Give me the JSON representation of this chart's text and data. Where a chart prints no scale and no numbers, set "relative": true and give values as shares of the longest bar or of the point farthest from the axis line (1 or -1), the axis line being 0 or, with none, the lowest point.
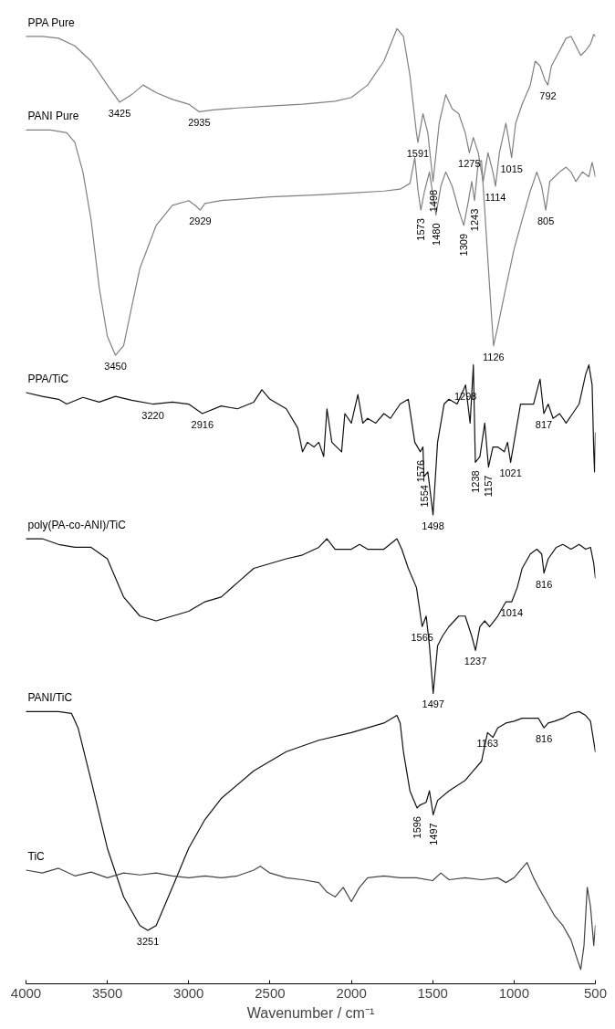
{
  "chart_data": {
    "type": "line",
    "relative": true,
    "xlabel": "Wavenumber / cm⁻¹",
    "xlim": [
      4000,
      500
    ],
    "xticks": [
      4000,
      3500,
      3000,
      2500,
      2000,
      1500,
      1000,
      500
    ],
    "grid": false,
    "legend": false,
    "marker": "none",
    "line_style": "solid",
    "series": [
      {
        "name": "PPA Pure",
        "color": "#808080",
        "x": [
          4000,
          3900,
          3800,
          3700,
          3600,
          3500,
          3425,
          3350,
          3280,
          3200,
          3100,
          3000,
          2935,
          2850,
          2700,
          2500,
          2300,
          2100,
          2000,
          1900,
          1800,
          1720,
          1680,
          1640,
          1600,
          1591,
          1560,
          1530,
          1498,
          1460,
          1420,
          1380,
          1340,
          1300,
          1275,
          1250,
          1220,
          1190,
          1160,
          1130,
          1114,
          1090,
          1050,
          1030,
          1015,
          990,
          950,
          900,
          870,
          840,
          810,
          792,
          770,
          720,
          680,
          650,
          620,
          590,
          560,
          530,
          510,
          500
        ],
        "values": [
          0.992,
          0.992,
          0.99,
          0.982,
          0.966,
          0.941,
          0.923,
          0.931,
          0.941,
          0.933,
          0.926,
          0.921,
          0.913,
          0.915,
          0.917,
          0.919,
          0.921,
          0.924,
          0.928,
          0.941,
          0.966,
          1.0,
          0.992,
          0.951,
          0.891,
          0.881,
          0.911,
          0.891,
          0.84,
          0.901,
          0.931,
          0.916,
          0.911,
          0.891,
          0.87,
          0.886,
          0.87,
          0.84,
          0.87,
          0.85,
          0.835,
          0.87,
          0.901,
          0.881,
          0.865,
          0.901,
          0.921,
          0.941,
          0.966,
          0.961,
          0.946,
          0.941,
          0.961,
          0.977,
          0.99,
          0.992,
          0.982,
          0.972,
          0.977,
          0.984,
          0.994,
          0.992
        ]
      },
      {
        "name": "PANI Pure",
        "color": "#808080",
        "x": [
          4000,
          3850,
          3750,
          3700,
          3650,
          3600,
          3550,
          3500,
          3450,
          3400,
          3350,
          3300,
          3200,
          3100,
          3000,
          2960,
          2929,
          2900,
          2800,
          2500,
          2200,
          2000,
          1800,
          1700,
          1640,
          1610,
          1590,
          1573,
          1550,
          1520,
          1480,
          1450,
          1420,
          1380,
          1340,
          1309,
          1280,
          1260,
          1243,
          1220,
          1200,
          1180,
          1150,
          1126,
          1100,
          1050,
          1000,
          950,
          900,
          860,
          830,
          805,
          780,
          720,
          680,
          650,
          620,
          580,
          540,
          520,
          500
        ],
        "values": [
          0.894,
          0.894,
          0.891,
          0.881,
          0.85,
          0.8,
          0.729,
          0.678,
          0.658,
          0.668,
          0.709,
          0.749,
          0.794,
          0.815,
          0.82,
          0.815,
          0.81,
          0.817,
          0.82,
          0.824,
          0.826,
          0.828,
          0.83,
          0.832,
          0.838,
          0.865,
          0.83,
          0.81,
          0.83,
          0.85,
          0.805,
          0.835,
          0.85,
          0.835,
          0.81,
          0.794,
          0.82,
          0.84,
          0.82,
          0.86,
          0.862,
          0.81,
          0.729,
          0.668,
          0.688,
          0.729,
          0.769,
          0.8,
          0.83,
          0.85,
          0.835,
          0.81,
          0.84,
          0.85,
          0.855,
          0.85,
          0.84,
          0.85,
          0.845,
          0.86,
          0.845
        ]
      },
      {
        "name": "PPA/TiC",
        "color": "#111111",
        "x": [
          4000,
          3900,
          3800,
          3750,
          3650,
          3550,
          3450,
          3350,
          3220,
          3100,
          3000,
          2916,
          2800,
          2700,
          2600,
          2550,
          2500,
          2400,
          2330,
          2300,
          2270,
          2230,
          2200,
          2170,
          2150,
          2120,
          2090,
          2060,
          2040,
          2000,
          1960,
          1930,
          1900,
          1850,
          1800,
          1760,
          1700,
          1650,
          1610,
          1576,
          1560,
          1554,
          1530,
          1498,
          1470,
          1430,
          1400,
          1350,
          1310,
          1298,
          1270,
          1250,
          1238,
          1210,
          1180,
          1157,
          1130,
          1100,
          1060,
          1040,
          1021,
          990,
          960,
          920,
          880,
          850,
          840,
          817,
          790,
          760,
          720,
          680,
          640,
          600,
          560,
          540,
          520,
          510,
          505,
          500
        ],
        "values": [
          0.619,
          0.615,
          0.612,
          0.607,
          0.614,
          0.609,
          0.615,
          0.611,
          0.607,
          0.609,
          0.607,
          0.597,
          0.605,
          0.602,
          0.609,
          0.622,
          0.612,
          0.602,
          0.582,
          0.557,
          0.567,
          0.562,
          0.567,
          0.552,
          0.602,
          0.567,
          0.562,
          0.557,
          0.597,
          0.587,
          0.617,
          0.587,
          0.592,
          0.587,
          0.597,
          0.592,
          0.607,
          0.612,
          0.567,
          0.557,
          0.562,
          0.531,
          0.536,
          0.491,
          0.567,
          0.607,
          0.612,
          0.607,
          0.622,
          0.627,
          0.587,
          0.648,
          0.546,
          0.552,
          0.587,
          0.541,
          0.562,
          0.562,
          0.557,
          0.567,
          0.546,
          0.577,
          0.607,
          0.607,
          0.607,
          0.627,
          0.633,
          0.597,
          0.607,
          0.592,
          0.597,
          0.587,
          0.597,
          0.607,
          0.638,
          0.648,
          0.627,
          0.557,
          0.536,
          0.577
        ]
      },
      {
        "name": "poly(PA-co-ANI)/TiC",
        "color": "#111111",
        "x": [
          4000,
          3900,
          3800,
          3700,
          3600,
          3500,
          3450,
          3400,
          3300,
          3200,
          3100,
          3000,
          2900,
          2800,
          2700,
          2600,
          2500,
          2400,
          2300,
          2200,
          2150,
          2100,
          2000,
          1950,
          1900,
          1800,
          1720,
          1690,
          1650,
          1600,
          1565,
          1540,
          1520,
          1497,
          1470,
          1440,
          1400,
          1340,
          1300,
          1260,
          1237,
          1210,
          1180,
          1150,
          1100,
          1050,
          1014,
          980,
          950,
          900,
          860,
          830,
          816,
          790,
          740,
          700,
          650,
          600,
          560,
          530,
          510,
          500
        ],
        "values": [
          0.466,
          0.466,
          0.46,
          0.457,
          0.457,
          0.445,
          0.425,
          0.405,
          0.385,
          0.38,
          0.385,
          0.39,
          0.4,
          0.405,
          0.42,
          0.435,
          0.44,
          0.445,
          0.449,
          0.457,
          0.466,
          0.455,
          0.455,
          0.46,
          0.455,
          0.455,
          0.466,
          0.455,
          0.435,
          0.415,
          0.374,
          0.385,
          0.354,
          0.304,
          0.354,
          0.364,
          0.374,
          0.385,
          0.385,
          0.364,
          0.349,
          0.374,
          0.38,
          0.374,
          0.385,
          0.4,
          0.4,
          0.415,
          0.435,
          0.45,
          0.455,
          0.45,
          0.43,
          0.445,
          0.457,
          0.46,
          0.455,
          0.46,
          0.455,
          0.457,
          0.44,
          0.425
        ]
      },
      {
        "name": "PANI/TiC",
        "color": "#111111",
        "x": [
          4000,
          3800,
          3720,
          3680,
          3600,
          3500,
          3400,
          3300,
          3251,
          3200,
          3100,
          3000,
          2900,
          2800,
          2600,
          2400,
          2200,
          2000,
          1800,
          1720,
          1700,
          1680,
          1640,
          1596,
          1580,
          1540,
          1520,
          1497,
          1470,
          1400,
          1300,
          1250,
          1200,
          1163,
          1130,
          1100,
          1050,
          1000,
          950,
          900,
          850,
          816,
          790,
          750,
          700,
          650,
          600,
          560,
          530,
          500
        ],
        "values": [
          0.285,
          0.285,
          0.283,
          0.268,
          0.213,
          0.142,
          0.091,
          0.061,
          0.056,
          0.061,
          0.101,
          0.142,
          0.172,
          0.194,
          0.223,
          0.243,
          0.255,
          0.263,
          0.273,
          0.281,
          0.273,
          0.243,
          0.202,
          0.184,
          0.187,
          0.19,
          0.202,
          0.177,
          0.192,
          0.202,
          0.213,
          0.223,
          0.233,
          0.263,
          0.258,
          0.268,
          0.273,
          0.275,
          0.278,
          0.278,
          0.278,
          0.268,
          0.273,
          0.275,
          0.278,
          0.283,
          0.285,
          0.281,
          0.275,
          0.243
        ]
      },
      {
        "name": "TiC",
        "color": "#444444",
        "x": [
          4000,
          3900,
          3800,
          3700,
          3600,
          3500,
          3400,
          3300,
          3200,
          3100,
          3000,
          2900,
          2800,
          2700,
          2600,
          2560,
          2500,
          2400,
          2300,
          2200,
          2150,
          2100,
          2050,
          2000,
          1950,
          1900,
          1800,
          1700,
          1600,
          1500,
          1450,
          1400,
          1300,
          1200,
          1100,
          1050,
          1000,
          950,
          920,
          880,
          850,
          800,
          750,
          700,
          650,
          610,
          590,
          570,
          550,
          530,
          510,
          500
        ],
        "values": [
          0.119,
          0.116,
          0.121,
          0.113,
          0.117,
          0.111,
          0.116,
          0.114,
          0.116,
          0.113,
          0.111,
          0.113,
          0.111,
          0.113,
          0.119,
          0.123,
          0.116,
          0.111,
          0.109,
          0.106,
          0.096,
          0.091,
          0.101,
          0.086,
          0.101,
          0.111,
          0.113,
          0.111,
          0.111,
          0.108,
          0.116,
          0.109,
          0.111,
          0.109,
          0.111,
          0.106,
          0.111,
          0.121,
          0.127,
          0.111,
          0.101,
          0.086,
          0.071,
          0.061,
          0.046,
          0.025,
          0.015,
          0.04,
          0.101,
          0.081,
          0.04,
          0.061
        ]
      }
    ],
    "annotations": [
      {
        "text": "3425",
        "x": 3425,
        "y": 0.923
      },
      {
        "text": "2935",
        "x": 2935,
        "y": 0.913
      },
      {
        "text": "1591",
        "x": 1591,
        "y": 0.881
      },
      {
        "text": "1498",
        "x": 1498,
        "y": 0.84
      },
      {
        "text": "1275",
        "x": 1275,
        "y": 0.87
      },
      {
        "text": "1114",
        "x": 1114,
        "y": 0.835
      },
      {
        "text": "1015",
        "x": 1015,
        "y": 0.865
      },
      {
        "text": "792",
        "x": 792,
        "y": 0.941
      },
      {
        "text": "3450",
        "x": 3450,
        "y": 0.658
      },
      {
        "text": "2929",
        "x": 2929,
        "y": 0.81
      },
      {
        "text": "1573",
        "x": 1573,
        "y": 0.81
      },
      {
        "text": "1480",
        "x": 1480,
        "y": 0.805
      },
      {
        "text": "1309",
        "x": 1309,
        "y": 0.794
      },
      {
        "text": "1243",
        "x": 1243,
        "y": 0.82
      },
      {
        "text": "805",
        "x": 805,
        "y": 0.81
      },
      {
        "text": "1126",
        "x": 1126,
        "y": 0.668
      },
      {
        "text": "3220",
        "x": 3220,
        "y": 0.607
      },
      {
        "text": "2916",
        "x": 2916,
        "y": 0.597
      },
      {
        "text": "1298",
        "x": 1298,
        "y": 0.627
      },
      {
        "text": "1576",
        "x": 1576,
        "y": 0.557
      },
      {
        "text": "1554",
        "x": 1554,
        "y": 0.531
      },
      {
        "text": "1238",
        "x": 1238,
        "y": 0.546
      },
      {
        "text": "1157",
        "x": 1157,
        "y": 0.541
      },
      {
        "text": "1021",
        "x": 1021,
        "y": 0.546
      },
      {
        "text": "817",
        "x": 817,
        "y": 0.597
      },
      {
        "text": "1498",
        "x": 1498,
        "y": 0.491
      },
      {
        "text": "816",
        "x": 816,
        "y": 0.43
      },
      {
        "text": "1014",
        "x": 1014,
        "y": 0.4
      },
      {
        "text": "1565",
        "x": 1565,
        "y": 0.374
      },
      {
        "text": "1237",
        "x": 1237,
        "y": 0.349
      },
      {
        "text": "1497",
        "x": 1497,
        "y": 0.304
      },
      {
        "text": "1163",
        "x": 1163,
        "y": 0.263
      },
      {
        "text": "816",
        "x": 816,
        "y": 0.268
      },
      {
        "text": "1596",
        "x": 1596,
        "y": 0.184
      },
      {
        "text": "1497",
        "x": 1497,
        "y": 0.177
      },
      {
        "text": "3251",
        "x": 3251,
        "y": 0.056
      }
    ]
  }
}
